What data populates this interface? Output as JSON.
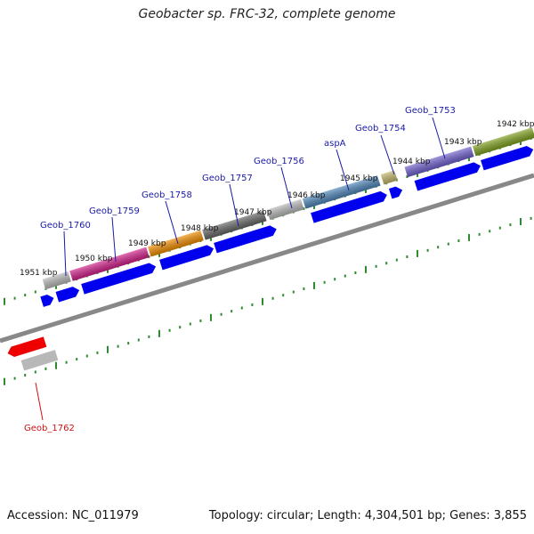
{
  "title": "Geobacter sp. FRC-32, complete genome",
  "footer": {
    "accession": "Accession: NC_011979",
    "summary": "Topology: circular; Length: 4,304,501 bp; Genes: 3,855"
  },
  "scale_labels": [
    "1951 kbp",
    "1950 kbp",
    "1949 kbp",
    "1948 kbp",
    "1947 kbp",
    "1946 kbp",
    "1945 kbp",
    "1944 kbp",
    "1943 kbp",
    "1942 kbp"
  ],
  "gene_labels": [
    {
      "name": "Geob_1760",
      "color": "#1a1aa6"
    },
    {
      "name": "Geob_1759",
      "color": "#1a1aa6"
    },
    {
      "name": "Geob_1758",
      "color": "#1a1aa6"
    },
    {
      "name": "Geob_1757",
      "color": "#1a1aa6"
    },
    {
      "name": "Geob_1756",
      "color": "#1a1aa6"
    },
    {
      "name": "aspA",
      "color": "#1a1aa6"
    },
    {
      "name": "Geob_1754",
      "color": "#1a1aa6"
    },
    {
      "name": "Geob_1753",
      "color": "#1a1aa6"
    },
    {
      "name": "Geob_1762",
      "color": "#cc1111"
    }
  ],
  "colors": {
    "backbone": "#888888",
    "cds": "#0000ee",
    "tick": "#2e8b2e",
    "feature_gray": "#b8b8b8",
    "feature_dark": "#666666",
    "feature_magenta": "#d0208a",
    "feature_orange": "#f08c00",
    "feature_steel": "#4f86b8",
    "feature_khaki": "#c2b66a",
    "feature_violet": "#7060cc",
    "feature_olive": "#7fa020",
    "feature_red": "#ee0000"
  }
}
